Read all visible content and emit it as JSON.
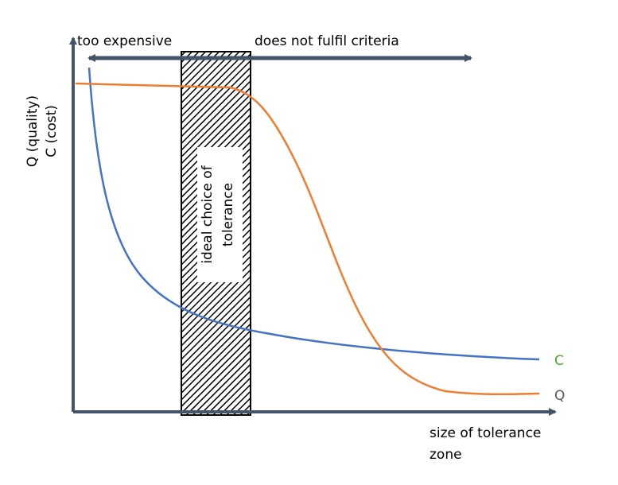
{
  "labels": {
    "too_expensive": "too expensive",
    "not_fulfil": "does not fulfil criteria",
    "y_axis": [
      "Q (quality)",
      "C (cost)"
    ],
    "ideal": [
      "ideal choice of",
      "tolerance"
    ],
    "curve_c": "C",
    "curve_q": "Q",
    "x_axis": [
      "size of tolerance",
      "zone"
    ]
  }
}
